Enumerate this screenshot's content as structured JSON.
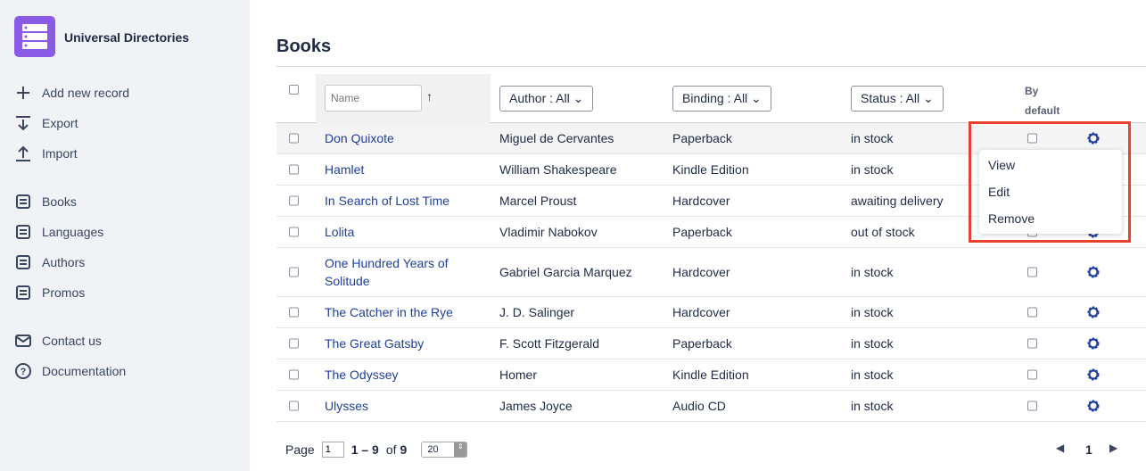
{
  "app": {
    "title": "Universal Directories"
  },
  "sidebar": {
    "actions": [
      {
        "label": "Add new record",
        "icon": "plus-icon"
      },
      {
        "label": "Export",
        "icon": "export-icon"
      },
      {
        "label": "Import",
        "icon": "import-icon"
      }
    ],
    "directories": [
      {
        "label": "Books"
      },
      {
        "label": "Languages"
      },
      {
        "label": "Authors"
      },
      {
        "label": "Promos"
      }
    ],
    "help": [
      {
        "label": "Contact us",
        "icon": "mail-icon"
      },
      {
        "label": "Documentation",
        "icon": "help-icon"
      }
    ]
  },
  "page": {
    "title": "Books"
  },
  "table": {
    "name_placeholder": "Name",
    "filters": {
      "author": "Author : All",
      "binding": "Binding : All",
      "status": "Status : All"
    },
    "by_default": [
      "By",
      "default"
    ],
    "rows": [
      {
        "name": "Don Quixote",
        "author": "Miguel de Cervantes",
        "binding": "Paperback",
        "status": "in stock"
      },
      {
        "name": "Hamlet",
        "author": "William Shakespeare",
        "binding": "Kindle Edition",
        "status": "in stock"
      },
      {
        "name": "In Search of Lost Time",
        "author": "Marcel Proust",
        "binding": "Hardcover",
        "status": "awaiting delivery"
      },
      {
        "name": "Lolita",
        "author": "Vladimir Nabokov",
        "binding": "Paperback",
        "status": "out of stock"
      },
      {
        "name": "One Hundred Years of Solitude",
        "author": "Gabriel Garcia Marquez",
        "binding": "Hardcover",
        "status": "in stock"
      },
      {
        "name": "The Catcher in the Rye",
        "author": "J. D. Salinger",
        "binding": "Hardcover",
        "status": "in stock"
      },
      {
        "name": "The Great Gatsby",
        "author": "F. Scott Fitzgerald",
        "binding": "Paperback",
        "status": "in stock"
      },
      {
        "name": "The Odyssey",
        "author": "Homer",
        "binding": "Kindle Edition",
        "status": "in stock"
      },
      {
        "name": "Ulysses",
        "author": "James Joyce",
        "binding": "Audio CD",
        "status": "in stock"
      }
    ]
  },
  "context_menu": {
    "items": [
      "View",
      "Edit",
      "Remove"
    ]
  },
  "pagination": {
    "label": "Page",
    "page": "1",
    "range": "1 – 9",
    "of": "of",
    "total": "9",
    "per_page": "20",
    "current": "1"
  },
  "colors": {
    "accent": "#1f3f9c",
    "highlight": "#e8412c",
    "sidebar_bg": "#f1f2f6"
  }
}
